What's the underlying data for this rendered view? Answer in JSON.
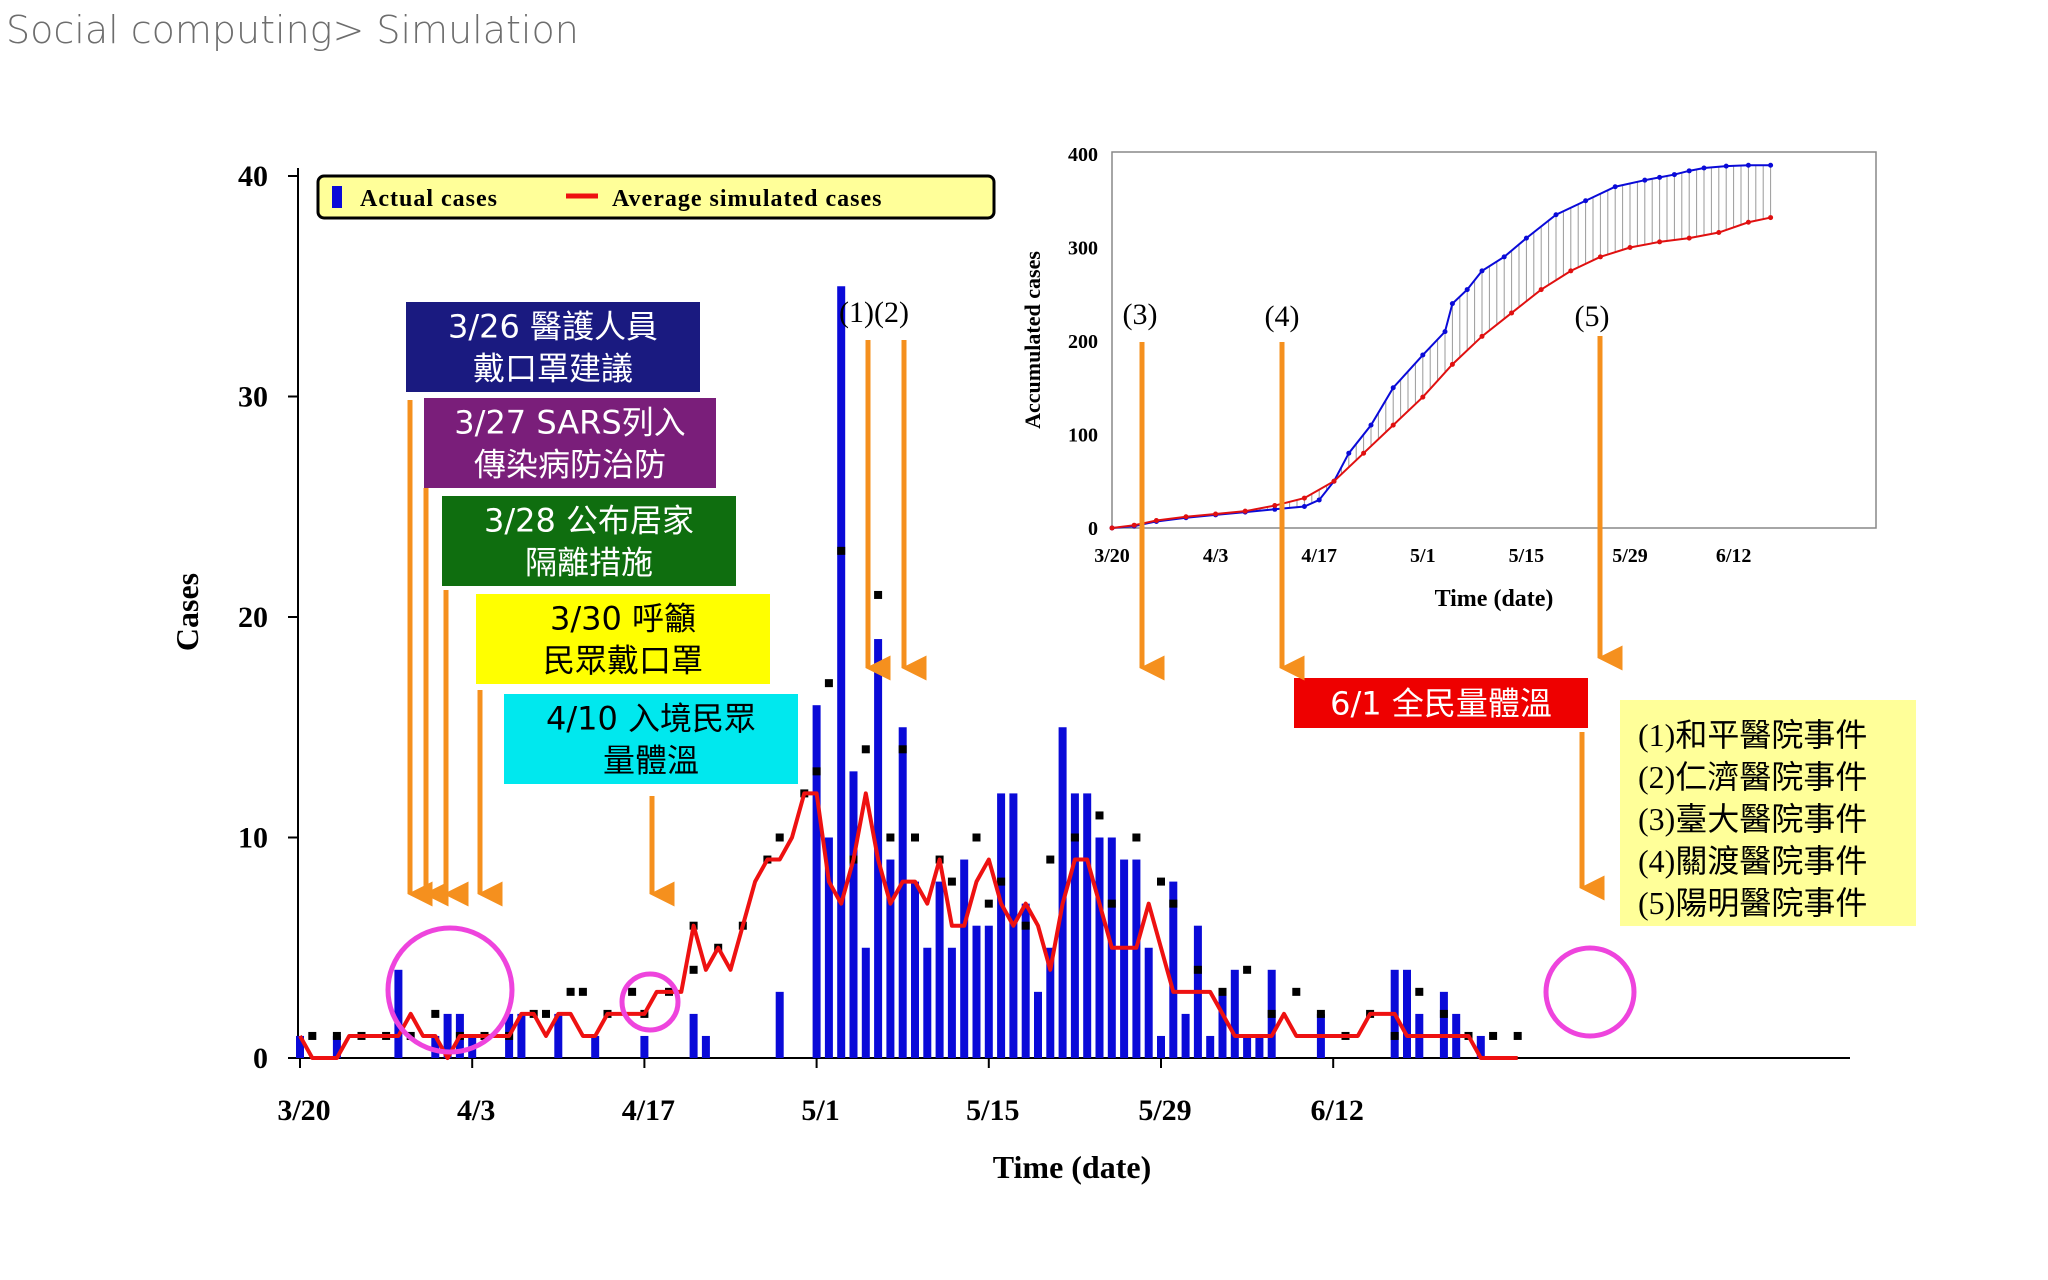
{
  "header": {
    "breadcrumb": "Social computing> Simulation"
  },
  "chart_data": [
    {
      "type": "bar",
      "title": "",
      "xlabel": "Time (date)",
      "ylabel": "Cases",
      "ylim": [
        0,
        40
      ],
      "yticks": [
        0,
        10,
        20,
        30,
        40
      ],
      "xticks": [
        "3/20",
        "4/3",
        "4/17",
        "5/1",
        "5/15",
        "5/29",
        "6/12"
      ],
      "x_start": "3/20",
      "grid": false,
      "legend": {
        "placement": "top-left",
        "entries": [
          {
            "label": "Actual cases",
            "color": "#0a0ad8",
            "mark": "bar"
          },
          {
            "label": "Average simulated cases",
            "color": "#ee1111",
            "mark": "line"
          }
        ]
      },
      "series": [
        {
          "name": "Actual cases",
          "type": "bar",
          "color": "#0a0ad8",
          "values": [
            1,
            0,
            0,
            1,
            0,
            0,
            0,
            0,
            4,
            0,
            0,
            1,
            2,
            2,
            1,
            0,
            0,
            2,
            2,
            0,
            0,
            2,
            0,
            0,
            1,
            0,
            0,
            0,
            1,
            0,
            0,
            0,
            2,
            1,
            0,
            0,
            0,
            0,
            0,
            3,
            0,
            0,
            16,
            10,
            35,
            13,
            5,
            19,
            9,
            15,
            8,
            5,
            8,
            5,
            9,
            6,
            6,
            12,
            12,
            7,
            3,
            5,
            15,
            12,
            12,
            10,
            10,
            9,
            9,
            5,
            1,
            8,
            2,
            6,
            1,
            3,
            4,
            1,
            1,
            4,
            0,
            0,
            0,
            2,
            0,
            0,
            0,
            0,
            0,
            4,
            4,
            2,
            0,
            3,
            2,
            0,
            1,
            0,
            0,
            0
          ]
        },
        {
          "name": "Average simulated cases",
          "type": "line",
          "color": "#ee1111",
          "values": [
            1,
            0,
            0,
            0,
            1,
            1,
            1,
            1,
            1,
            2,
            1,
            1,
            0,
            1,
            1,
            1,
            1,
            1,
            2,
            2,
            1,
            2,
            2,
            1,
            1,
            2,
            2,
            2,
            2,
            3,
            3,
            3,
            6,
            4,
            5,
            4,
            6,
            8,
            9,
            9,
            10,
            12,
            12,
            8,
            7,
            9,
            12,
            9,
            7,
            8,
            8,
            7,
            9,
            6,
            6,
            8,
            9,
            7,
            6,
            7,
            6,
            4,
            7,
            9,
            9,
            7,
            5,
            5,
            5,
            7,
            5,
            3,
            3,
            3,
            3,
            2,
            1,
            1,
            1,
            1,
            2,
            1,
            1,
            1,
            1,
            1,
            1,
            2,
            2,
            2,
            1,
            1,
            1,
            1,
            1,
            1,
            0,
            0,
            0,
            0
          ]
        },
        {
          "name": "",
          "type": "scatter",
          "color": "#000000",
          "mark": "square",
          "note": "individual simulation runs",
          "points": [
            [
              1,
              1
            ],
            [
              3,
              1
            ],
            [
              5,
              1
            ],
            [
              7,
              1
            ],
            [
              9,
              1
            ],
            [
              11,
              2
            ],
            [
              13,
              1
            ],
            [
              15,
              1
            ],
            [
              17,
              1
            ],
            [
              19,
              2
            ],
            [
              20,
              2
            ],
            [
              22,
              3
            ],
            [
              23,
              3
            ],
            [
              25,
              2
            ],
            [
              27,
              3
            ],
            [
              28,
              2
            ],
            [
              30,
              3
            ],
            [
              32,
              4
            ],
            [
              32,
              6
            ],
            [
              34,
              5
            ],
            [
              36,
              6
            ],
            [
              38,
              9
            ],
            [
              39,
              10
            ],
            [
              41,
              12
            ],
            [
              42,
              13
            ],
            [
              43,
              17
            ],
            [
              44,
              23
            ],
            [
              45,
              9
            ],
            [
              46,
              14
            ],
            [
              47,
              21
            ],
            [
              48,
              10
            ],
            [
              49,
              14
            ],
            [
              50,
              10
            ],
            [
              52,
              9
            ],
            [
              53,
              8
            ],
            [
              55,
              10
            ],
            [
              56,
              7
            ],
            [
              57,
              8
            ],
            [
              59,
              6
            ],
            [
              61,
              9
            ],
            [
              63,
              10
            ],
            [
              65,
              11
            ],
            [
              66,
              7
            ],
            [
              68,
              10
            ],
            [
              70,
              8
            ],
            [
              71,
              7
            ],
            [
              73,
              4
            ],
            [
              75,
              3
            ],
            [
              77,
              4
            ],
            [
              79,
              2
            ],
            [
              81,
              3
            ],
            [
              83,
              2
            ],
            [
              85,
              1
            ],
            [
              87,
              2
            ],
            [
              89,
              1
            ],
            [
              91,
              3
            ],
            [
              93,
              2
            ],
            [
              95,
              1
            ],
            [
              97,
              1
            ],
            [
              99,
              1
            ]
          ]
        }
      ],
      "annotations": {
        "events": [
          {
            "label": "3/26 醫護人員\n戴口罩建議",
            "bg": "#1a1a80",
            "fg": "#ffffff"
          },
          {
            "label": "3/27 SARS列入\n傳染病防治防",
            "bg": "#7a1e7a",
            "fg": "#ffffff"
          },
          {
            "label": "3/28 公布居家\n隔離措施",
            "bg": "#0f6e0f",
            "fg": "#ffffff"
          },
          {
            "label": "3/30 呼籲\n民眾戴口罩",
            "bg": "#ffff00",
            "fg": "#000000"
          },
          {
            "label": "4/10 入境民眾\n量體溫",
            "bg": "#00e8ee",
            "fg": "#000000"
          },
          {
            "label": "6/1 全民量體溫",
            "bg": "#ee0000",
            "fg": "#ffffff"
          }
        ],
        "markers": [
          "(1)(2)",
          "(3)",
          "(4)",
          "(5)"
        ],
        "key_box": [
          "(1)和平醫院事件",
          "(2)仁濟醫院事件",
          "(3)臺大醫院事件",
          "(4)關渡醫院事件",
          "(5)陽明醫院事件"
        ],
        "arrow_color": "#f5901e",
        "circle_color": "#ee44dd"
      }
    },
    {
      "type": "line",
      "title": "",
      "xlabel": "Time (date)",
      "ylabel": "Accumulated cases",
      "ylim": [
        0,
        400
      ],
      "yticks": [
        0,
        100,
        200,
        300,
        400
      ],
      "xticks": [
        "3/20",
        "4/3",
        "4/17",
        "5/1",
        "5/15",
        "5/29",
        "6/12"
      ],
      "grid": false,
      "series": [
        {
          "name": "",
          "color": "#0a0ad8",
          "x": [
            0,
            3,
            6,
            10,
            14,
            18,
            22,
            26,
            28,
            30,
            32,
            35,
            38,
            42,
            45,
            46,
            48,
            50,
            53,
            56,
            60,
            64,
            68,
            72,
            74,
            76,
            78,
            80,
            83,
            86,
            89
          ],
          "y": [
            0,
            2,
            7,
            11,
            14,
            17,
            20,
            23,
            30,
            50,
            80,
            110,
            150,
            185,
            210,
            240,
            255,
            275,
            290,
            310,
            335,
            350,
            365,
            372,
            375,
            378,
            382,
            385,
            387,
            388,
            388
          ]
        },
        {
          "name": "",
          "color": "#e01010",
          "x": [
            0,
            3,
            6,
            10,
            14,
            18,
            22,
            26,
            30,
            34,
            38,
            42,
            46,
            50,
            54,
            58,
            62,
            66,
            70,
            74,
            78,
            82,
            86,
            89
          ],
          "y": [
            0,
            3,
            8,
            12,
            15,
            18,
            24,
            32,
            50,
            80,
            110,
            140,
            175,
            205,
            230,
            255,
            275,
            290,
            300,
            306,
            310,
            316,
            327,
            332
          ]
        }
      ]
    }
  ]
}
